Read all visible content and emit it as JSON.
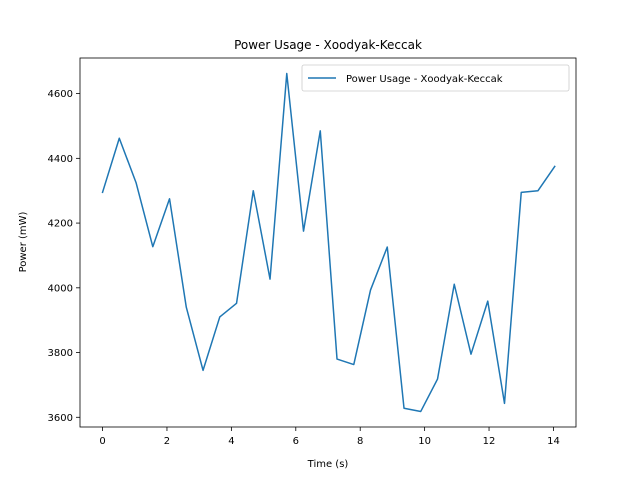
{
  "chart_data": {
    "type": "line",
    "title": "Power Usage - Xoodyak-Keccak",
    "xlabel": "Time (s)",
    "ylabel": "Power (mW)",
    "xlim": [
      -0.7,
      14.7
    ],
    "ylim": [
      3570,
      4710
    ],
    "x_ticks": [
      0,
      2,
      4,
      6,
      8,
      10,
      12,
      14
    ],
    "y_ticks": [
      3600,
      3800,
      4000,
      4200,
      4400,
      4600
    ],
    "grid": false,
    "legend_position": "upper right",
    "series": [
      {
        "name": "Power Usage - Xoodyak-Keccak",
        "color": "#1f77b4",
        "x": [
          0,
          0.52,
          1.04,
          1.56,
          2.08,
          2.6,
          3.12,
          3.64,
          4.16,
          4.68,
          5.2,
          5.72,
          6.24,
          6.76,
          7.28,
          7.8,
          8.32,
          8.84,
          9.36,
          9.88,
          10.4,
          10.92,
          11.44,
          11.96,
          12.48,
          13.0,
          13.52,
          14.04
        ],
        "y": [
          4295,
          4462,
          4325,
          4127,
          4275,
          3940,
          3745,
          3910,
          3952,
          4300,
          4027,
          4662,
          4175,
          4485,
          3780,
          3763,
          3993,
          4126,
          3628,
          3618,
          3718,
          4011,
          3795,
          3959,
          3643,
          4295,
          4300,
          4375
        ]
      }
    ]
  }
}
